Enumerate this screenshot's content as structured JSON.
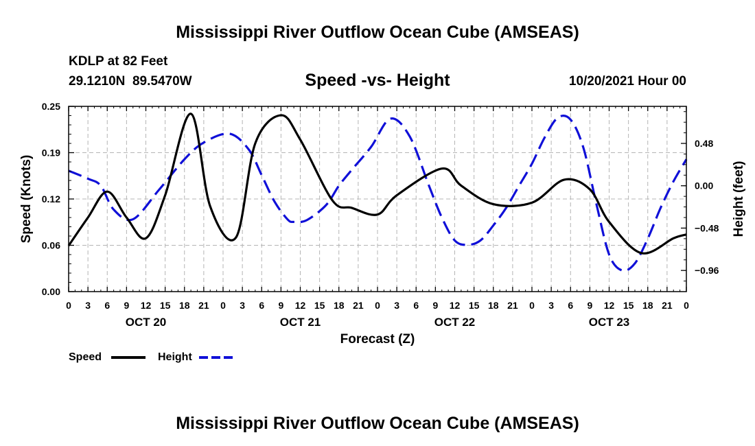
{
  "chart_data": {
    "type": "line",
    "title": "Mississippi River Outflow Ocean Cube (AMSEAS)",
    "station": "KDLP at 82 Feet",
    "coordinates": "29.1210N  89.5470W",
    "subtitle": "Speed -vs- Height",
    "date_label": "10/20/2021 Hour 00",
    "xlabel": "Forecast (Z)",
    "ylabel_left": "Speed (Knots)",
    "ylabel_right": "Height (feet)",
    "ylim_left": [
      0,
      0.25
    ],
    "ylim_right": [
      -1.2,
      0.9
    ],
    "xlim": [
      0,
      96
    ],
    "left_ticks": [
      "0.00",
      "0.06",
      "0.12",
      "0.19",
      "0.25"
    ],
    "left_tick_values": [
      0,
      0.0625,
      0.125,
      0.1875,
      0.25
    ],
    "right_ticks": [
      "−0.96",
      "−0.48",
      "0.00",
      "0.48"
    ],
    "right_tick_values": [
      -0.96,
      -0.48,
      0,
      0.48
    ],
    "x_ticks": [
      "0",
      "3",
      "6",
      "9",
      "12",
      "15",
      "18",
      "21",
      "0",
      "3",
      "6",
      "9",
      "12",
      "15",
      "18",
      "21",
      "0",
      "3",
      "6",
      "9",
      "12",
      "15",
      "18",
      "21",
      "0",
      "3",
      "6",
      "9",
      "12",
      "15",
      "18",
      "21",
      "0"
    ],
    "day_labels": [
      {
        "label": "OCT 20",
        "hour": 12
      },
      {
        "label": "OCT 21",
        "hour": 36
      },
      {
        "label": "OCT 22",
        "hour": 60
      },
      {
        "label": "OCT 23",
        "hour": 84
      }
    ],
    "grid": true,
    "series": [
      {
        "name": "Speed",
        "axis": "left",
        "color": "#000000",
        "dash": "solid",
        "x": [
          0,
          3,
          6,
          9,
          12,
          15,
          19,
          22,
          26,
          29,
          33,
          36,
          41,
          44,
          48,
          51,
          58,
          61,
          66,
          72,
          77,
          81,
          84,
          89,
          94,
          96
        ],
        "y": [
          0.062,
          0.1,
          0.135,
          0.1,
          0.072,
          0.13,
          0.24,
          0.115,
          0.073,
          0.2,
          0.238,
          0.205,
          0.123,
          0.113,
          0.104,
          0.13,
          0.166,
          0.143,
          0.118,
          0.12,
          0.151,
          0.138,
          0.094,
          0.052,
          0.072,
          0.077
        ]
      },
      {
        "name": "Height",
        "axis": "right",
        "color": "#1010d8",
        "dash": "dashed",
        "x": [
          0,
          3,
          5,
          7,
          10,
          14,
          18,
          21,
          25,
          28,
          30,
          32,
          34,
          35,
          37,
          40,
          42,
          44,
          47,
          50,
          53,
          56,
          58,
          60,
          62,
          64,
          66,
          68,
          70,
          72,
          74,
          76,
          78,
          80,
          82,
          84,
          86,
          88,
          90,
          92,
          94,
          96
        ],
        "y": [
          0.17,
          0.08,
          0.0,
          -0.27,
          -0.38,
          -0.05,
          0.3,
          0.49,
          0.59,
          0.41,
          0.12,
          -0.18,
          -0.38,
          -0.41,
          -0.39,
          -0.22,
          0.0,
          0.18,
          0.44,
          0.76,
          0.56,
          0.0,
          -0.36,
          -0.62,
          -0.67,
          -0.62,
          -0.45,
          -0.25,
          0.0,
          0.25,
          0.55,
          0.77,
          0.75,
          0.43,
          -0.2,
          -0.78,
          -0.96,
          -0.88,
          -0.6,
          -0.25,
          0.05,
          0.3
        ]
      }
    ],
    "legend": [
      {
        "label": "Speed",
        "color": "#000000",
        "dash": "solid"
      },
      {
        "label": "Height",
        "color": "#1010d8",
        "dash": "dashed"
      }
    ]
  }
}
